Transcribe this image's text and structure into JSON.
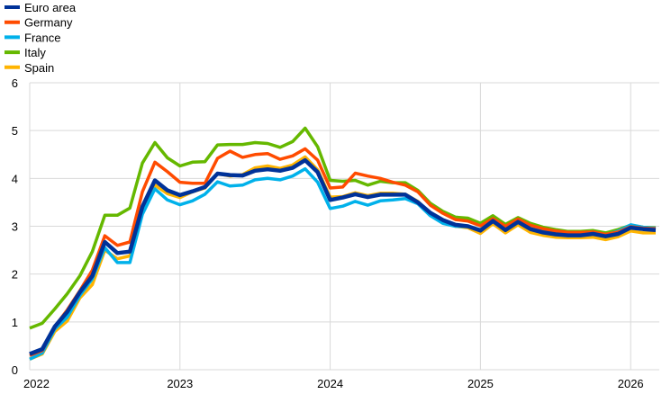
{
  "chart_data": {
    "type": "line",
    "title": "",
    "xlabel": "",
    "ylabel": "",
    "ylim": [
      0,
      6
    ],
    "yticks": [
      0,
      1,
      2,
      3,
      4,
      5,
      6
    ],
    "xticks": [
      "2022",
      "2023",
      "2024",
      "2025",
      "2026"
    ],
    "x_start": "2022-01",
    "x_frequency": "monthly",
    "x_end": "2026-03",
    "grid": true,
    "legend_position": "top-left",
    "series": [
      {
        "name": "Euro area",
        "color": "#003299",
        "values": [
          0.33,
          0.43,
          0.9,
          1.21,
          1.62,
          1.96,
          2.67,
          2.44,
          2.47,
          3.41,
          3.96,
          3.75,
          3.65,
          3.73,
          3.82,
          4.1,
          4.07,
          4.06,
          4.16,
          4.19,
          4.16,
          4.22,
          4.38,
          4.13,
          3.55,
          3.6,
          3.67,
          3.61,
          3.66,
          3.66,
          3.66,
          3.5,
          3.28,
          3.13,
          3.03,
          3.0,
          2.91,
          3.11,
          2.92,
          3.09,
          2.94,
          2.87,
          2.83,
          2.81,
          2.81,
          2.84,
          2.79,
          2.84,
          2.97,
          2.94,
          2.92
        ]
      },
      {
        "name": "Germany",
        "color": "#ff4b00",
        "values": [
          0.3,
          0.4,
          0.9,
          1.25,
          1.65,
          2.08,
          2.8,
          2.6,
          2.67,
          3.72,
          4.34,
          4.14,
          3.92,
          3.9,
          3.9,
          4.42,
          4.57,
          4.44,
          4.5,
          4.52,
          4.4,
          4.47,
          4.62,
          4.38,
          3.8,
          3.82,
          4.11,
          4.05,
          4.0,
          3.92,
          3.86,
          3.72,
          3.44,
          3.27,
          3.14,
          3.11,
          3.01,
          3.16,
          3.0,
          3.15,
          3.02,
          2.95,
          2.9,
          2.87,
          2.87,
          2.88,
          2.83,
          2.88,
          2.99,
          2.96,
          2.95
        ]
      },
      {
        "name": "France",
        "color": "#00b1ea",
        "values": [
          0.22,
          0.35,
          0.85,
          1.1,
          1.55,
          1.9,
          2.55,
          2.24,
          2.24,
          3.25,
          3.78,
          3.55,
          3.45,
          3.53,
          3.67,
          3.93,
          3.84,
          3.86,
          3.97,
          4.0,
          3.97,
          4.05,
          4.2,
          3.92,
          3.37,
          3.42,
          3.52,
          3.44,
          3.53,
          3.55,
          3.58,
          3.47,
          3.22,
          3.06,
          3.0,
          2.99,
          2.93,
          3.1,
          2.93,
          3.08,
          2.95,
          2.89,
          2.85,
          2.83,
          2.83,
          2.86,
          2.82,
          2.9,
          3.03,
          2.98,
          2.96
        ]
      },
      {
        "name": "Italy",
        "color": "#65b800",
        "values": [
          0.87,
          0.97,
          1.27,
          1.59,
          1.96,
          2.47,
          3.23,
          3.23,
          3.38,
          4.32,
          4.75,
          4.43,
          4.26,
          4.34,
          4.35,
          4.7,
          4.71,
          4.71,
          4.75,
          4.73,
          4.65,
          4.77,
          5.05,
          4.66,
          3.96,
          3.94,
          3.96,
          3.86,
          3.94,
          3.91,
          3.91,
          3.75,
          3.48,
          3.31,
          3.19,
          3.17,
          3.06,
          3.22,
          3.04,
          3.18,
          3.06,
          2.98,
          2.93,
          2.89,
          2.89,
          2.91,
          2.86,
          2.93,
          3.02,
          2.98,
          2.97
        ]
      },
      {
        "name": "Spain",
        "color": "#ffb400",
        "values": [
          0.22,
          0.33,
          0.8,
          1.02,
          1.5,
          1.78,
          2.5,
          2.32,
          2.38,
          3.35,
          3.86,
          3.68,
          3.6,
          3.72,
          3.8,
          4.1,
          4.05,
          4.08,
          4.22,
          4.26,
          4.21,
          4.28,
          4.45,
          4.18,
          3.61,
          3.62,
          3.7,
          3.64,
          3.69,
          3.69,
          3.67,
          3.52,
          3.26,
          3.1,
          3.0,
          2.97,
          2.85,
          3.05,
          2.86,
          3.03,
          2.87,
          2.81,
          2.77,
          2.76,
          2.76,
          2.77,
          2.72,
          2.78,
          2.9,
          2.86,
          2.86
        ]
      }
    ]
  }
}
